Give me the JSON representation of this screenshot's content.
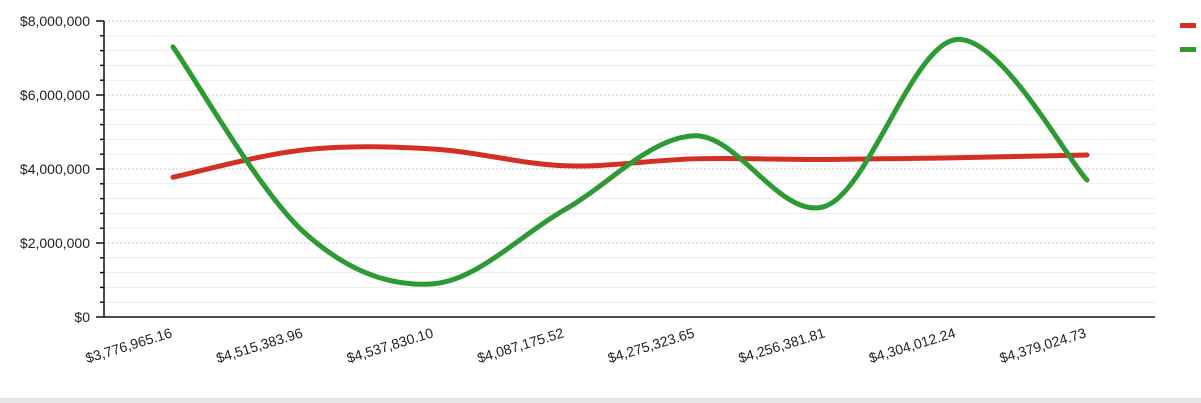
{
  "chart_data": {
    "type": "line",
    "title": "",
    "xlabel": "",
    "ylabel": "",
    "categories": [
      "$3,776,965.16",
      "$4,515,383.96",
      "$4,537,830.10",
      "$4,087,175.52",
      "$4,275,323.65",
      "$4,256,381.81",
      "$4,304,012.24",
      "$4,379,024.73"
    ],
    "y_ticks": [
      "$0",
      "$2,000,000",
      "$4,000,000",
      "$6,000,000",
      "$8,000,000"
    ],
    "ylim": [
      0,
      8000000
    ],
    "grid": true,
    "legend_position": "top-right",
    "smooth": true,
    "series": [
      {
        "color": "#d32f23",
        "values": [
          3776965.16,
          4515383.96,
          4537830.1,
          4087175.52,
          4275323.65,
          4256381.81,
          4304012.24,
          4379024.73
        ]
      },
      {
        "color": "#2e9a34",
        "values": [
          7300000,
          2300000,
          900000,
          2900000,
          4900000,
          3000000,
          7500000,
          3700000
        ]
      }
    ]
  }
}
